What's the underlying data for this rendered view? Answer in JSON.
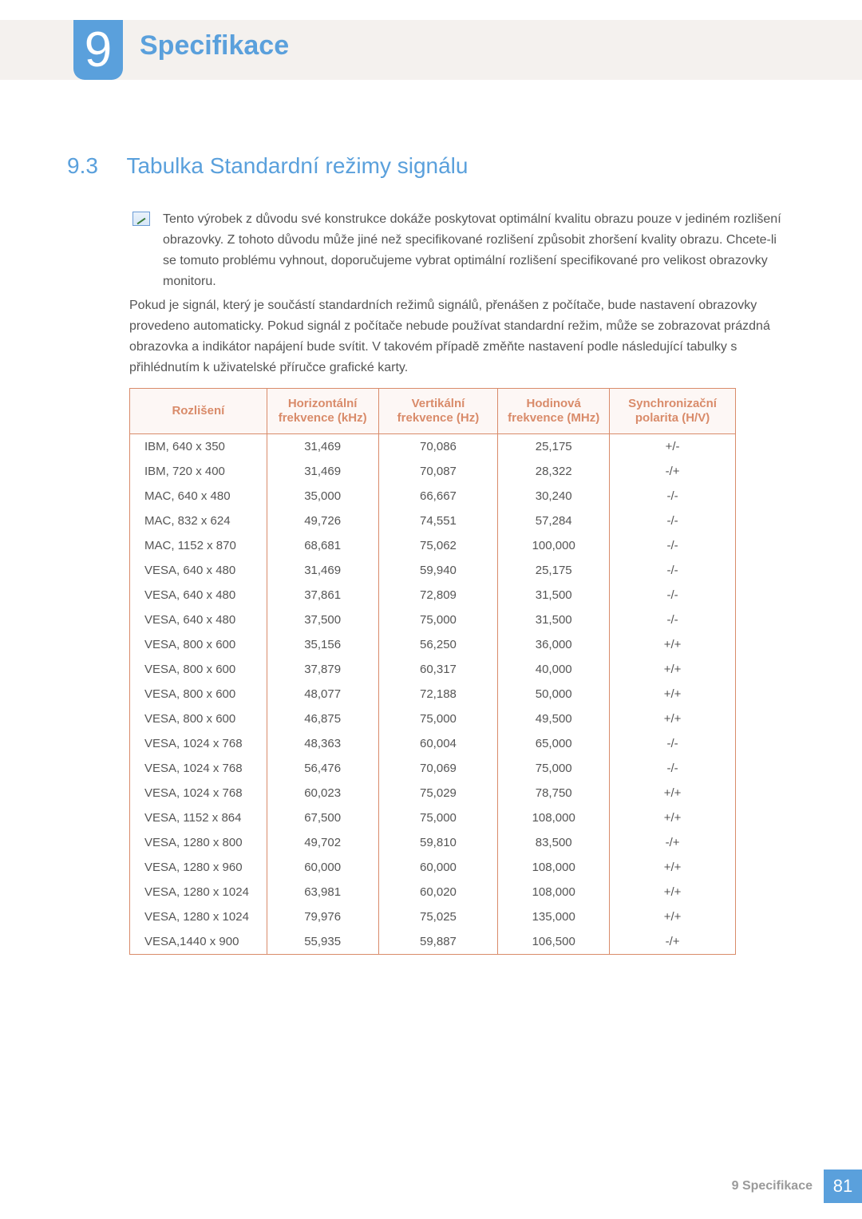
{
  "chapter": {
    "number": "9",
    "title": "Specifikace"
  },
  "section": {
    "number": "9.3",
    "title": "Tabulka Standardní režimy signálu"
  },
  "note": "Tento výrobek z důvodu své konstrukce dokáže poskytovat optimální kvalitu obrazu pouze v jediném rozlišení obrazovky. Z tohoto důvodu může jiné než specifikované rozlišení způsobit zhoršení kvality obrazu. Chcete-li se tomuto problému vyhnout, doporučujeme vybrat optimální rozlišení specifikované pro velikost obrazovky monitoru.",
  "body": "Pokud je signál, který je součástí standardních režimů signálů, přenášen z počítače, bude nastavení obrazovky provedeno automaticky. Pokud signál z počítače nebude používat standardní režim, může se zobrazovat prázdná obrazovka a indikátor napájení bude svítit. V takovém případě změňte nastavení podle následující tabulky s přihlédnutím k uživatelské příručce grafické karty.",
  "table": {
    "type": "table",
    "header_bg": "#fdf7f5",
    "header_color": "#d98b6a",
    "border_color": "#d98b6a",
    "columns": [
      "Rozlišení",
      "Horizontální frekvence (kHz)",
      "Vertikální frekvence (Hz)",
      "Hodinová frekvence (MHz)",
      "Synchronizační polarita (H/V)"
    ],
    "rows": [
      [
        "IBM, 640 x 350",
        "31,469",
        "70,086",
        "25,175",
        "+/-"
      ],
      [
        "IBM, 720 x 400",
        "31,469",
        "70,087",
        "28,322",
        "-/+"
      ],
      [
        "MAC, 640 x 480",
        "35,000",
        "66,667",
        "30,240",
        "-/-"
      ],
      [
        "MAC, 832 x 624",
        "49,726",
        "74,551",
        "57,284",
        "-/-"
      ],
      [
        "MAC, 1152 x 870",
        "68,681",
        "75,062",
        "100,000",
        "-/-"
      ],
      [
        "VESA, 640 x 480",
        "31,469",
        "59,940",
        "25,175",
        "-/-"
      ],
      [
        "VESA, 640 x 480",
        "37,861",
        "72,809",
        "31,500",
        "-/-"
      ],
      [
        "VESA, 640 x 480",
        "37,500",
        "75,000",
        "31,500",
        "-/-"
      ],
      [
        "VESA, 800 x 600",
        "35,156",
        "56,250",
        "36,000",
        "+/+"
      ],
      [
        "VESA, 800 x 600",
        "37,879",
        "60,317",
        "40,000",
        "+/+"
      ],
      [
        "VESA, 800 x 600",
        "48,077",
        "72,188",
        "50,000",
        "+/+"
      ],
      [
        "VESA, 800 x 600",
        "46,875",
        "75,000",
        "49,500",
        "+/+"
      ],
      [
        "VESA, 1024 x 768",
        "48,363",
        "60,004",
        "65,000",
        "-/-"
      ],
      [
        "VESA, 1024 x 768",
        "56,476",
        "70,069",
        "75,000",
        "-/-"
      ],
      [
        "VESA, 1024 x 768",
        "60,023",
        "75,029",
        "78,750",
        "+/+"
      ],
      [
        "VESA, 1152 x 864",
        "67,500",
        "75,000",
        "108,000",
        "+/+"
      ],
      [
        "VESA, 1280 x 800",
        "49,702",
        "59,810",
        "83,500",
        "-/+"
      ],
      [
        "VESA, 1280 x 960",
        "60,000",
        "60,000",
        "108,000",
        "+/+"
      ],
      [
        "VESA, 1280 x 1024",
        "63,981",
        "60,020",
        "108,000",
        "+/+"
      ],
      [
        "VESA, 1280 x 1024",
        "79,976",
        "75,025",
        "135,000",
        "+/+"
      ],
      [
        "VESA,1440 x 900",
        "55,935",
        "59,887",
        "106,500",
        "-/+"
      ]
    ]
  },
  "footer": {
    "label": "9 Specifikace",
    "page": "81"
  },
  "colors": {
    "accent_blue": "#5aa0dc",
    "band_bg": "#f4f1ee",
    "text_body": "#555555"
  }
}
